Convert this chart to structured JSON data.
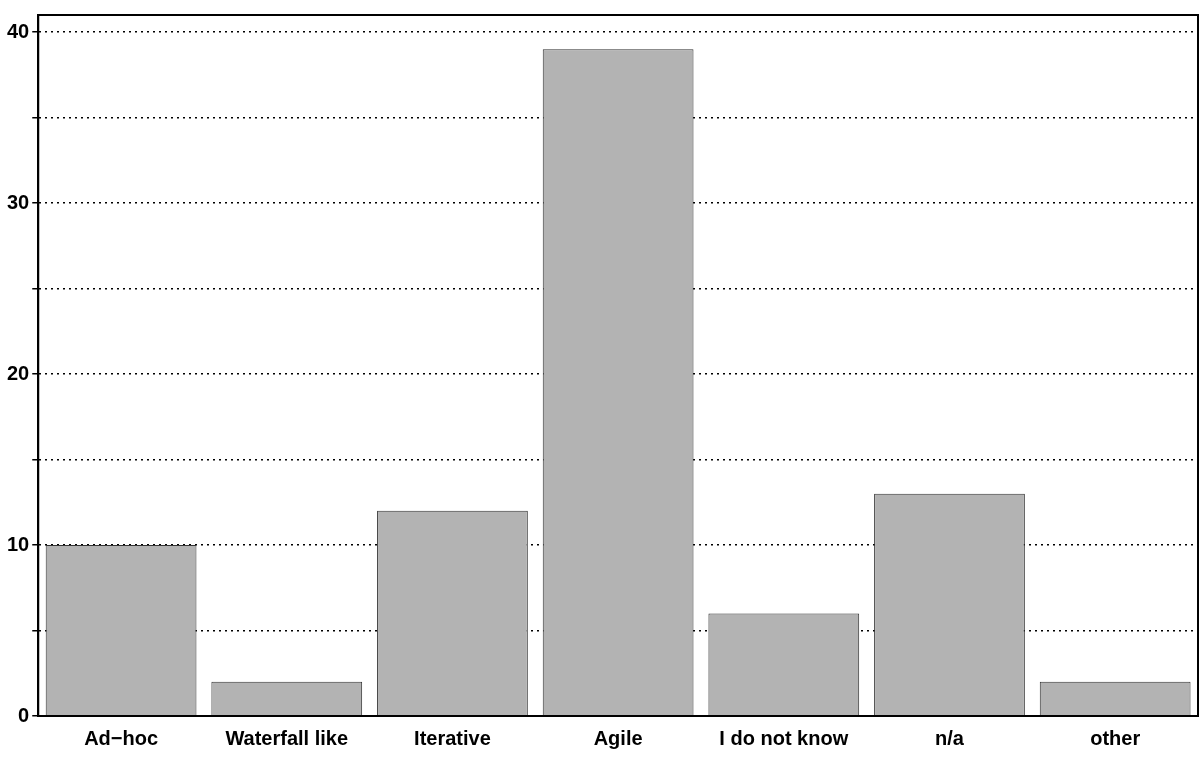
{
  "chart_data": {
    "type": "bar",
    "categories": [
      "Ad−hoc",
      "Waterfall like",
      "Iterative",
      "Agile",
      "I do not know",
      "n/a",
      "other"
    ],
    "values": [
      10,
      2,
      12,
      39,
      6,
      13,
      2
    ],
    "color": "#b3b3b3",
    "ylim": [
      0,
      41
    ],
    "yticks": [
      0,
      {
        "value": 5,
        "label": null
      },
      10,
      {
        "value": 15,
        "label": null
      },
      20,
      {
        "value": 25,
        "label": null
      },
      30,
      {
        "value": 35,
        "label": null
      },
      40
    ],
    "grid": "y",
    "legend": false
  }
}
